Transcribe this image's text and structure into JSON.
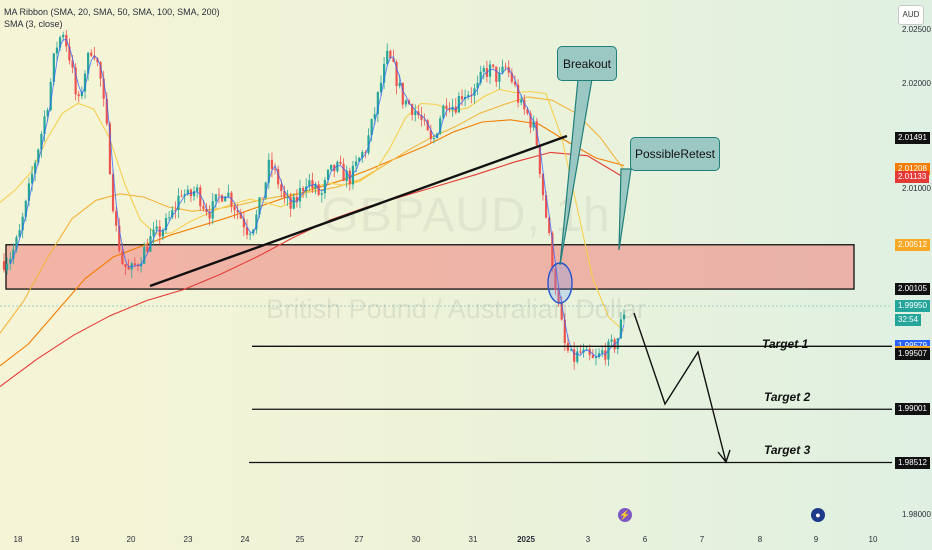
{
  "legend": {
    "ribbon": "MA Ribbon (SMA, 20, SMA, 50, SMA, 100, SMA, 200)",
    "sma": "SMA (3, close)"
  },
  "watermark": {
    "symbol": "GBPAUD, 1h",
    "name": "British Pound / Australian Dollar"
  },
  "currency": "AUD",
  "price_ticks": [
    "2.02500",
    "2.02000",
    "2.01000",
    "1.98000"
  ],
  "price_badges": [
    {
      "label": "2.01491",
      "color": "#111111",
      "price": 2.01491
    },
    {
      "label": "2.01208",
      "color": "#f57c00",
      "price": 2.01208
    },
    {
      "label": "2.01133",
      "color": "#e53935",
      "price": 2.01133
    },
    {
      "label": "2.00512",
      "color": "#f9a825",
      "price": 2.00512
    },
    {
      "label": "2.00105",
      "color": "#111111",
      "price": 2.00105
    },
    {
      "label": "1.99950",
      "color": "#26a69a",
      "price": 1.9995
    },
    {
      "label": "32:54",
      "color": "#26a69a",
      "price": 1.9982
    },
    {
      "label": "1.99579",
      "color": "#2962ff",
      "price": 1.99579
    },
    {
      "label": "1.99524",
      "color": "#f9a825",
      "price": 1.99524
    },
    {
      "label": "1.99507",
      "color": "#111111",
      "price": 1.99507
    },
    {
      "label": "1.99001",
      "color": "#111111",
      "price": 1.99001
    },
    {
      "label": "1.98512",
      "color": "#111111",
      "price": 1.98512
    }
  ],
  "x_ticks": [
    {
      "label": "18",
      "bold": false
    },
    {
      "label": "19",
      "bold": false
    },
    {
      "label": "20",
      "bold": false
    },
    {
      "label": "23",
      "bold": false
    },
    {
      "label": "24",
      "bold": false
    },
    {
      "label": "25",
      "bold": false
    },
    {
      "label": "27",
      "bold": false
    },
    {
      "label": "30",
      "bold": false
    },
    {
      "label": "31",
      "bold": false
    },
    {
      "label": "2025",
      "bold": true
    },
    {
      "label": "3",
      "bold": false
    },
    {
      "label": "6",
      "bold": false
    },
    {
      "label": "7",
      "bold": false
    },
    {
      "label": "8",
      "bold": false
    },
    {
      "label": "9",
      "bold": false
    },
    {
      "label": "10",
      "bold": false
    }
  ],
  "annotations": {
    "breakout": "Breakout",
    "retest": "PossibleRetest",
    "target1": "Target 1",
    "target2": "Target 2",
    "target3": "Target 3",
    "event1": "⚡",
    "event2": "●"
  },
  "chart_data": {
    "type": "candlestick",
    "title": "GBPAUD, 1h",
    "subtitle": "British Pound / Australian Dollar",
    "ylim": [
      1.978,
      2.0265
    ],
    "zone": [
      2.00105,
      2.00512
    ],
    "targets": [
      1.99579,
      1.99001,
      1.98512
    ],
    "close_path": [
      2.0036,
      2.0042,
      2.0058,
      2.0088,
      2.0122,
      2.0152,
      2.0185,
      2.0232,
      2.0248,
      2.0221,
      2.0176,
      2.0212,
      2.0236,
      2.0207,
      2.0152,
      2.0072,
      2.0036,
      2.0025,
      2.0034,
      2.0046,
      2.0058,
      2.0062,
      2.007,
      2.0082,
      2.0101,
      2.0094,
      2.0102,
      2.0089,
      2.0081,
      2.0094,
      2.0102,
      2.009,
      2.0078,
      2.0065,
      2.0072,
      2.0096,
      2.0126,
      2.0112,
      2.0092,
      2.0084,
      2.0098,
      2.0112,
      2.0102,
      2.0096,
      2.0116,
      2.0122,
      2.0116,
      2.0112,
      2.0128,
      2.014,
      2.0165,
      2.0198,
      2.0225,
      2.0208,
      2.0185,
      2.018,
      2.0172,
      2.0158,
      2.0142,
      2.0168,
      2.0185,
      2.0178,
      2.019,
      2.0192,
      2.0192,
      2.021,
      2.0212,
      2.0203,
      2.0214,
      2.02,
      2.0178,
      2.017,
      2.0155,
      2.01,
      2.005,
      2.0,
      1.9958,
      1.9945,
      1.9952,
      1.9948,
      1.9943,
      1.9952,
      1.9955,
      1.9962,
      1.999
    ],
    "ma20": [
      2.009,
      2.0102,
      2.0118,
      2.0148,
      2.0172,
      2.0181,
      2.0176,
      2.015,
      2.0107,
      2.0074,
      2.0061,
      2.0062,
      2.0071,
      2.0078,
      2.0084,
      2.0089,
      2.0093,
      2.009,
      2.0086,
      2.0092,
      2.0103,
      2.0108,
      2.0106,
      2.0109,
      2.0118,
      2.014,
      2.0168,
      2.0181,
      2.018,
      2.0174,
      2.0177,
      2.0187,
      2.0194,
      2.0191,
      2.0192,
      2.019,
      2.015,
      2.0085,
      2.002,
      1.9985,
      1.9972
    ],
    "ma50": [
      1.997,
      2.0,
      2.004,
      2.0075,
      2.0092,
      2.0098,
      2.0095,
      2.0086,
      2.0082,
      2.0084,
      2.0088,
      2.0093,
      2.0097,
      2.01,
      2.0104,
      2.0111,
      2.0124,
      2.0138,
      2.015,
      2.016,
      2.0172,
      2.018,
      2.0187,
      2.0184,
      2.0172,
      2.015,
      2.012
    ],
    "ma100": [
      1.994,
      1.996,
      1.999,
      2.002,
      2.004,
      2.005,
      2.006,
      2.0068,
      2.0076,
      2.0085,
      2.0094,
      2.0102,
      2.011,
      2.012,
      2.0131,
      2.0142,
      2.0155,
      2.0164,
      2.0166,
      2.0162,
      2.0146,
      2.0131,
      2.0124
    ],
    "ma200": [
      1.9921,
      1.9946,
      1.9968,
      1.9986,
      2.0,
      2.001,
      2.0024,
      2.004,
      2.0058,
      2.0074,
      2.0086,
      2.0096,
      2.0106,
      2.0116,
      2.0127,
      2.0136,
      2.0133,
      2.0113
    ]
  }
}
